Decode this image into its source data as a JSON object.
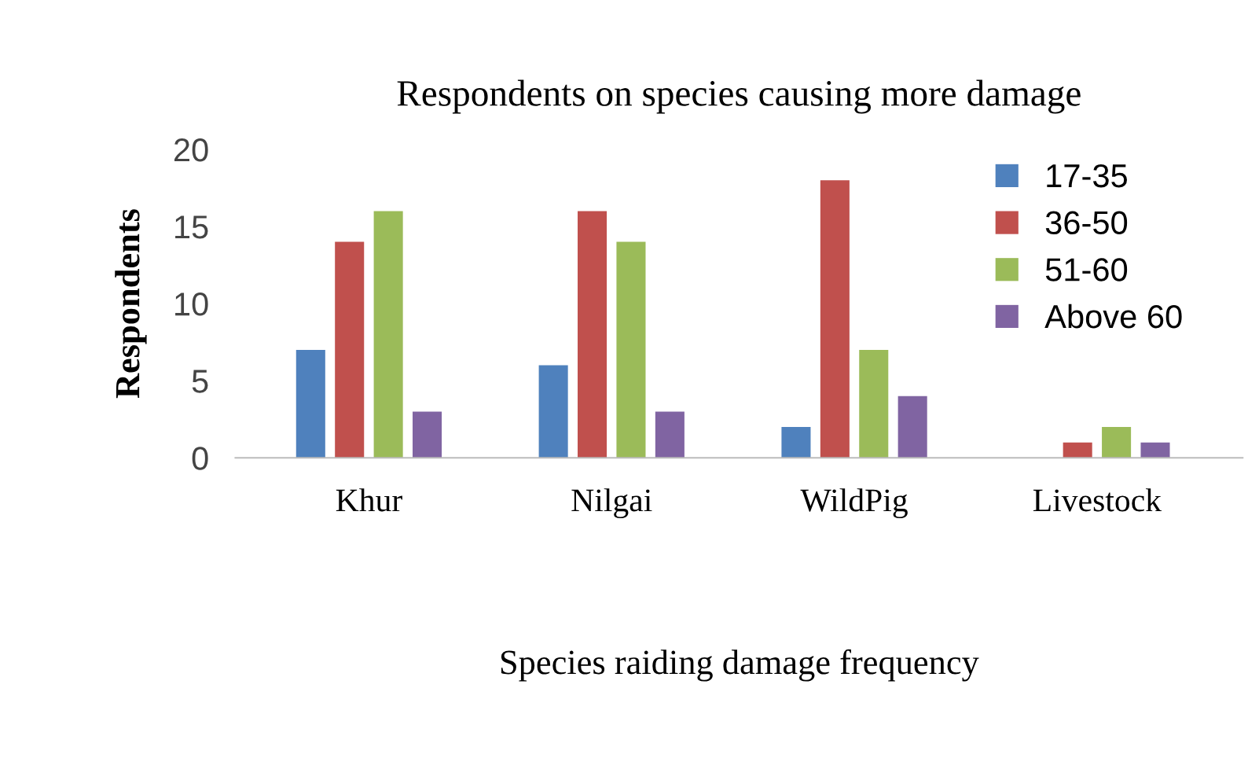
{
  "chart_data": {
    "type": "bar",
    "title": "Respondents on species causing more damage",
    "xlabel": "Species raiding damage frequency",
    "ylabel": "Respondents",
    "categories": [
      "Khur",
      "Nilgai",
      "WildPig",
      "Livestock"
    ],
    "series": [
      {
        "name": "17-35",
        "color": "#4f81bd",
        "values": [
          7,
          6,
          2,
          0
        ]
      },
      {
        "name": "36-50",
        "color": "#c0504d",
        "values": [
          14,
          16,
          18,
          1
        ]
      },
      {
        "name": "51-60",
        "color": "#9bbb59",
        "values": [
          16,
          14,
          7,
          2
        ]
      },
      {
        "name": "Above 60",
        "color": "#8064a2",
        "values": [
          3,
          3,
          4,
          1
        ]
      }
    ],
    "ylim": [
      0,
      20
    ],
    "yticks": [
      0,
      5,
      10,
      15,
      20
    ],
    "grid": false,
    "legend": "top right"
  }
}
